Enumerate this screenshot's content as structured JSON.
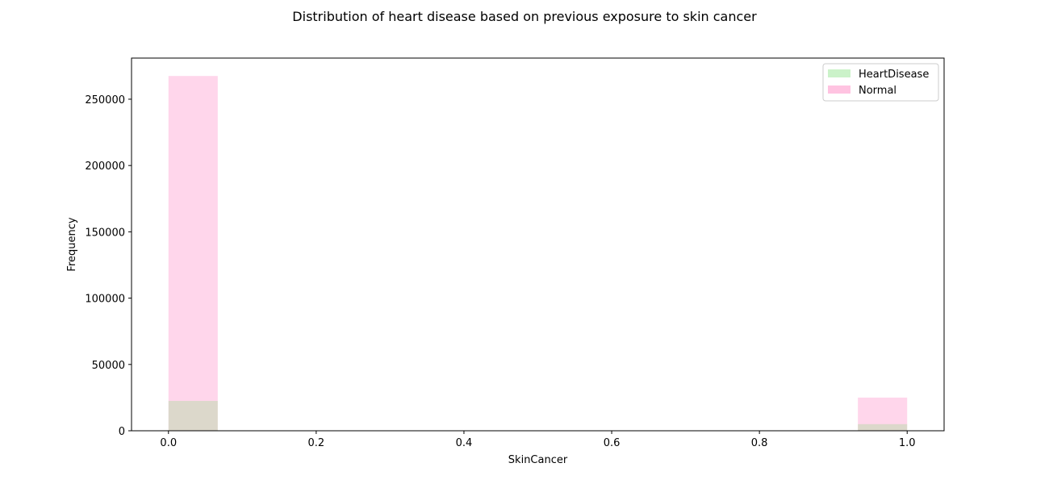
{
  "chart_data": {
    "type": "bar",
    "title": "Distribution of heart disease based on previous exposure to skin cancer",
    "xlabel": "SkinCancer",
    "ylabel": "Frequency",
    "xlim": [
      -0.05,
      1.05
    ],
    "ylim": [
      0,
      281000
    ],
    "xticks": [
      "0.0",
      "0.2",
      "0.4",
      "0.6",
      "0.8",
      "1.0"
    ],
    "xtick_values": [
      0.0,
      0.2,
      0.4,
      0.6,
      0.8,
      1.0
    ],
    "yticks": [
      "0",
      "50000",
      "100000",
      "150000",
      "200000",
      "250000"
    ],
    "ytick_values": [
      0,
      50000,
      100000,
      150000,
      200000,
      250000
    ],
    "grid": false,
    "legend_position": "top-right",
    "bin_width": 0.0667,
    "x": [
      0,
      1
    ],
    "series": [
      {
        "name": "Normal",
        "values": [
          267500,
          25000
        ],
        "color": "#ff69b4"
      },
      {
        "name": "HeartDisease",
        "values": [
          22500,
          5000
        ],
        "color": "#7ede77"
      }
    ],
    "legend": [
      {
        "name": "HeartDisease",
        "color": "#7ede77"
      },
      {
        "name": "Normal",
        "color": "#ff69b4"
      }
    ]
  }
}
